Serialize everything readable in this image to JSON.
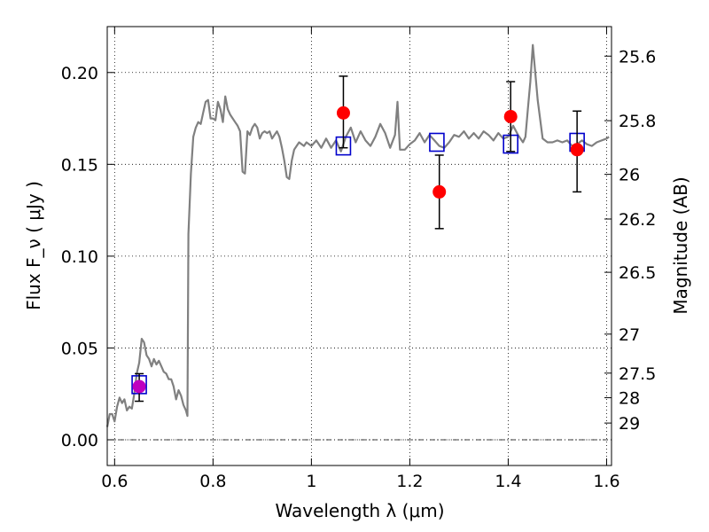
{
  "chart_data": {
    "type": "scatter",
    "title": "",
    "xlabel": "Wavelength  λ (μm)",
    "ylabel": "Flux  F_ν  ( μJy )",
    "y2label": "Magnitude (AB)",
    "xlim": [
      0.585,
      1.61
    ],
    "ylim": [
      -0.014,
      0.225
    ],
    "grid": true,
    "x_ticks": [
      {
        "v": 0.6,
        "label": "0.6"
      },
      {
        "v": 0.8,
        "label": "0.8"
      },
      {
        "v": 1.0,
        "label": "1"
      },
      {
        "v": 1.2,
        "label": "1.2"
      },
      {
        "v": 1.4,
        "label": "1.4"
      },
      {
        "v": 1.6,
        "label": "1.6"
      }
    ],
    "y_ticks": [
      {
        "v": 0.0,
        "label": "0.00"
      },
      {
        "v": 0.05,
        "label": "0.05"
      },
      {
        "v": 0.1,
        "label": "0.10"
      },
      {
        "v": 0.15,
        "label": "0.15"
      },
      {
        "v": 0.2,
        "label": "0.20"
      }
    ],
    "y2_ticks": [
      {
        "mag": 25.6,
        "label": "25.6"
      },
      {
        "mag": 25.8,
        "label": "25.8"
      },
      {
        "mag": 26.0,
        "label": "26"
      },
      {
        "mag": 26.2,
        "label": "26.2"
      },
      {
        "mag": 26.5,
        "label": "26.5"
      },
      {
        "mag": 27.0,
        "label": "27"
      },
      {
        "mag": 27.5,
        "label": "27.5"
      },
      {
        "mag": 28.0,
        "label": "28"
      },
      {
        "mag": 29.0,
        "label": "29"
      }
    ],
    "zero_line": 0.0,
    "series": [
      {
        "kind": "line",
        "color": "#808080",
        "x": [
          0.585,
          0.59,
          0.595,
          0.6,
          0.605,
          0.61,
          0.615,
          0.62,
          0.625,
          0.63,
          0.635,
          0.64,
          0.645,
          0.65,
          0.655,
          0.66,
          0.665,
          0.67,
          0.675,
          0.68,
          0.685,
          0.69,
          0.695,
          0.7,
          0.705,
          0.71,
          0.715,
          0.72,
          0.725,
          0.73,
          0.735,
          0.74,
          0.745,
          0.748,
          0.75,
          0.755,
          0.76,
          0.765,
          0.77,
          0.775,
          0.78,
          0.785,
          0.79,
          0.795,
          0.8,
          0.805,
          0.81,
          0.815,
          0.82,
          0.825,
          0.83,
          0.835,
          0.84,
          0.845,
          0.85,
          0.855,
          0.86,
          0.865,
          0.87,
          0.875,
          0.88,
          0.885,
          0.89,
          0.895,
          0.9,
          0.905,
          0.91,
          0.915,
          0.92,
          0.925,
          0.93,
          0.935,
          0.94,
          0.945,
          0.95,
          0.955,
          0.96,
          0.965,
          0.97,
          0.975,
          0.98,
          0.985,
          0.99,
          1.0,
          1.01,
          1.02,
          1.03,
          1.04,
          1.05,
          1.06,
          1.07,
          1.08,
          1.09,
          1.1,
          1.11,
          1.12,
          1.13,
          1.14,
          1.15,
          1.16,
          1.17,
          1.175,
          1.18,
          1.19,
          1.2,
          1.21,
          1.22,
          1.23,
          1.24,
          1.25,
          1.26,
          1.27,
          1.28,
          1.29,
          1.3,
          1.31,
          1.32,
          1.33,
          1.34,
          1.35,
          1.36,
          1.37,
          1.38,
          1.39,
          1.4,
          1.41,
          1.42,
          1.43,
          1.435,
          1.44,
          1.445,
          1.45,
          1.46,
          1.47,
          1.48,
          1.49,
          1.5,
          1.51,
          1.52,
          1.53,
          1.54,
          1.55,
          1.56,
          1.57,
          1.58,
          1.59,
          1.6,
          1.605
        ],
        "y": [
          0.007,
          0.014,
          0.014,
          0.01,
          0.018,
          0.023,
          0.02,
          0.022,
          0.016,
          0.018,
          0.017,
          0.025,
          0.036,
          0.042,
          0.055,
          0.053,
          0.046,
          0.044,
          0.04,
          0.044,
          0.041,
          0.043,
          0.04,
          0.037,
          0.036,
          0.033,
          0.033,
          0.029,
          0.022,
          0.027,
          0.024,
          0.019,
          0.016,
          0.013,
          0.112,
          0.145,
          0.165,
          0.17,
          0.173,
          0.172,
          0.178,
          0.184,
          0.185,
          0.175,
          0.175,
          0.174,
          0.184,
          0.18,
          0.173,
          0.187,
          0.18,
          0.177,
          0.175,
          0.173,
          0.171,
          0.168,
          0.146,
          0.145,
          0.168,
          0.166,
          0.17,
          0.172,
          0.17,
          0.164,
          0.167,
          0.168,
          0.167,
          0.168,
          0.164,
          0.166,
          0.168,
          0.165,
          0.159,
          0.152,
          0.143,
          0.142,
          0.152,
          0.158,
          0.16,
          0.162,
          0.161,
          0.16,
          0.162,
          0.16,
          0.163,
          0.159,
          0.164,
          0.159,
          0.163,
          0.157,
          0.165,
          0.17,
          0.162,
          0.168,
          0.163,
          0.16,
          0.165,
          0.172,
          0.167,
          0.159,
          0.166,
          0.184,
          0.158,
          0.158,
          0.161,
          0.163,
          0.167,
          0.162,
          0.166,
          0.163,
          0.16,
          0.159,
          0.162,
          0.166,
          0.165,
          0.168,
          0.164,
          0.167,
          0.164,
          0.168,
          0.166,
          0.163,
          0.167,
          0.164,
          0.165,
          0.171,
          0.166,
          0.162,
          0.165,
          0.18,
          0.195,
          0.215,
          0.185,
          0.164,
          0.162,
          0.162,
          0.163,
          0.162,
          0.163,
          0.16,
          0.161,
          0.163,
          0.161,
          0.16,
          0.162,
          0.163,
          0.164,
          0.165
        ]
      },
      {
        "kind": "markers",
        "marker": "open-square",
        "color": "#0000cc",
        "x": [
          0.65,
          1.065,
          1.255,
          1.405,
          1.54
        ],
        "y": [
          0.03,
          0.16,
          0.162,
          0.161,
          0.162
        ]
      },
      {
        "kind": "markers",
        "marker": "filled-circle",
        "color": "#ff0000",
        "x": [
          1.065,
          1.26,
          1.405,
          1.54
        ],
        "y": [
          0.178,
          0.135,
          0.176,
          0.158
        ],
        "err_low": [
          0.159,
          0.115,
          0.157,
          0.135
        ],
        "err_high": [
          0.198,
          0.155,
          0.195,
          0.179
        ]
      },
      {
        "kind": "markers",
        "marker": "filled-circle",
        "color": "#bf00bf",
        "x": [
          0.65
        ],
        "y": [
          0.029
        ],
        "err_low": [
          0.021
        ],
        "err_high": [
          0.036
        ]
      }
    ]
  }
}
